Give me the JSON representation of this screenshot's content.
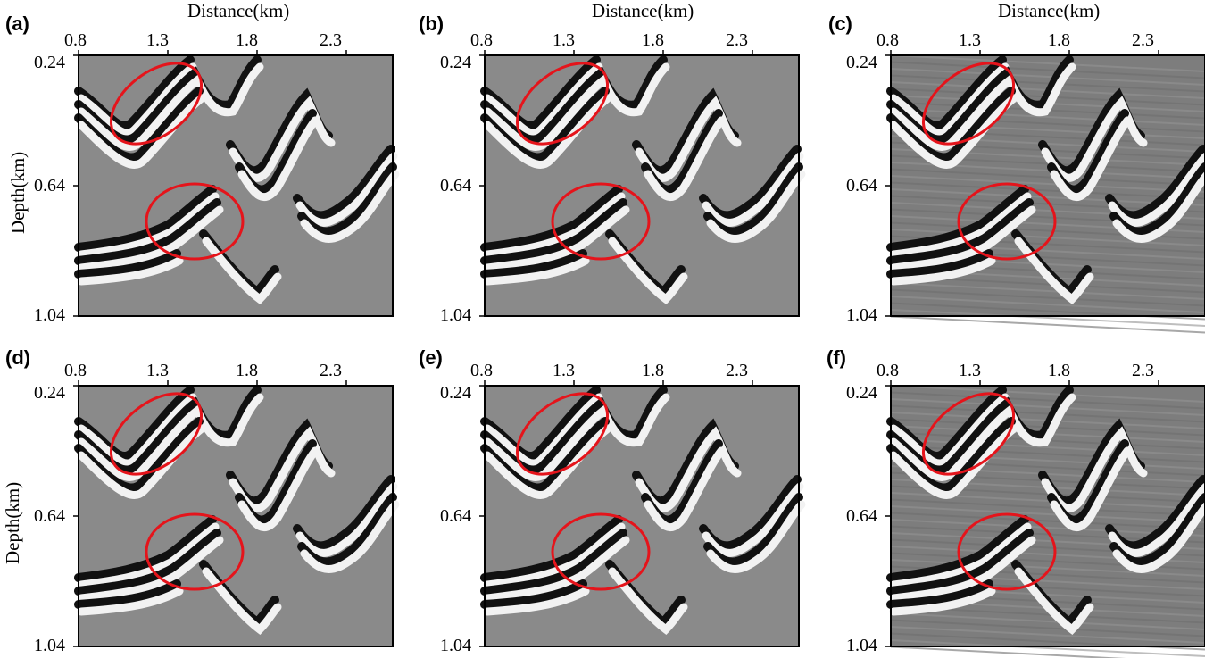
{
  "figure": {
    "x_axis_title": "Distance(km)",
    "y_axis_title": "Depth(km)",
    "x_ticks": [
      "0.8",
      "1.3",
      "1.8",
      "2.3"
    ],
    "y_ticks": [
      "0.24",
      "0.64",
      "1.04"
    ],
    "highlight_color": "#e5141b",
    "panels": [
      {
        "label": "(a)",
        "style": "smooth"
      },
      {
        "label": "(b)",
        "style": "smooth"
      },
      {
        "label": "(c)",
        "style": "noisy"
      },
      {
        "label": "(d)",
        "style": "smooth"
      },
      {
        "label": "(e)",
        "style": "smooth"
      },
      {
        "label": "(f)",
        "style": "noisy"
      }
    ]
  }
}
